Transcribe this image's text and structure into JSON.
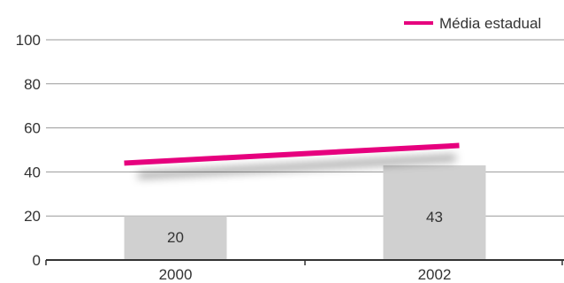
{
  "chart_data": {
    "type": "bar",
    "categories": [
      "2000",
      "2002"
    ],
    "series": [
      {
        "type": "bar",
        "values": [
          20,
          43
        ],
        "color": "#d0d0d0",
        "data_labels": [
          "20",
          "43"
        ]
      },
      {
        "type": "line",
        "name": "Média estadual",
        "values": [
          44,
          52
        ],
        "color": "#e6007e"
      }
    ],
    "y_ticks": [
      "0",
      "20",
      "40",
      "60",
      "80",
      "100"
    ],
    "ylim": [
      0,
      100
    ],
    "grid": true,
    "legend": {
      "position": "top-right"
    },
    "colors": {
      "bar": "#d0d0d0",
      "line": "#e6007e",
      "grid": "#999999",
      "axis": "#333333"
    }
  }
}
